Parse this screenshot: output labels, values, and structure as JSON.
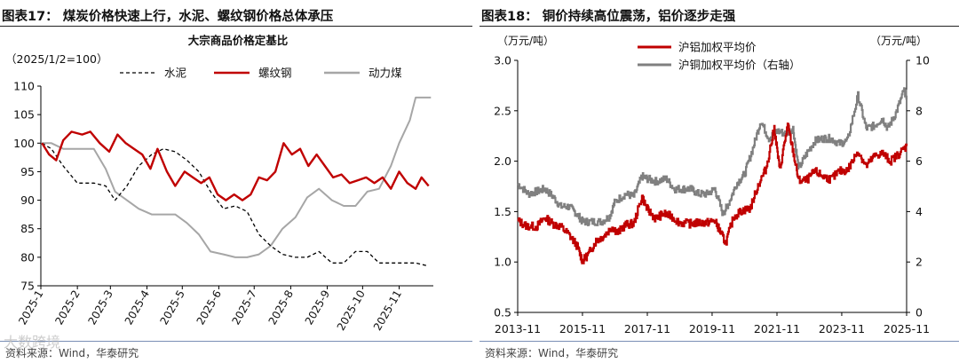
{
  "colors": {
    "red": "#c00000",
    "gray": "#a6a6a6",
    "dark_gray": "#808080",
    "black": "#000000",
    "rule": "#7a8fb5"
  },
  "left_figure": {
    "figure_title": "图表17：  煤炭价格快速上行，水泥、螺纹钢价格总体承压",
    "source": "资料来源：Wind，华泰研究",
    "watermark": "大数跨境",
    "chart_data": {
      "type": "line",
      "title": "大宗商品价格定基比",
      "subtitle": "（2025/1/2=100）",
      "ylim": [
        75,
        110
      ],
      "yticks": [
        75,
        80,
        85,
        90,
        95,
        100,
        105,
        110
      ],
      "x_range": [
        "2025-01-01",
        "2025-11-30"
      ],
      "x_tick_labels": [
        "2025-1",
        "2025-2",
        "2025-3",
        "2025-4",
        "2025-5",
        "2025-6",
        "2025-7",
        "2025-8",
        "2025-9",
        "2025-10",
        "2025-11"
      ],
      "x_tick_dates": [
        "2025-01-01",
        "2025-02-01",
        "2025-03-01",
        "2025-04-01",
        "2025-05-01",
        "2025-06-01",
        "2025-07-01",
        "2025-08-01",
        "2025-09-01",
        "2025-10-01",
        "2025-11-01"
      ],
      "legend_position": "top",
      "series": [
        {
          "name": "水泥",
          "style": "dashed",
          "color": "#000000",
          "points": [
            [
              "2025-01-02",
              100
            ],
            [
              "2025-01-10",
              99
            ],
            [
              "2025-01-20",
              96
            ],
            [
              "2025-02-01",
              93
            ],
            [
              "2025-02-15",
              93
            ],
            [
              "2025-02-25",
              92.5
            ],
            [
              "2025-03-05",
              90
            ],
            [
              "2025-03-15",
              92.5
            ],
            [
              "2025-03-25",
              96
            ],
            [
              "2025-04-05",
              98
            ],
            [
              "2025-04-15",
              99
            ],
            [
              "2025-04-25",
              98.5
            ],
            [
              "2025-05-05",
              97
            ],
            [
              "2025-05-15",
              95
            ],
            [
              "2025-05-25",
              91.5
            ],
            [
              "2025-06-05",
              88.5
            ],
            [
              "2025-06-15",
              89
            ],
            [
              "2025-06-25",
              88
            ],
            [
              "2025-07-05",
              84
            ],
            [
              "2025-07-15",
              82
            ],
            [
              "2025-07-25",
              80.5
            ],
            [
              "2025-08-05",
              80
            ],
            [
              "2025-08-15",
              80
            ],
            [
              "2025-08-25",
              81
            ],
            [
              "2025-09-05",
              79
            ],
            [
              "2025-09-15",
              79
            ],
            [
              "2025-09-25",
              81
            ],
            [
              "2025-10-05",
              81
            ],
            [
              "2025-10-15",
              79
            ],
            [
              "2025-10-25",
              79
            ],
            [
              "2025-11-05",
              79
            ],
            [
              "2025-11-15",
              79
            ],
            [
              "2025-11-25",
              78.5
            ]
          ]
        },
        {
          "name": "螺纹钢",
          "style": "solid",
          "color": "#c00000",
          "points": [
            [
              "2025-01-02",
              100
            ],
            [
              "2025-01-08",
              98
            ],
            [
              "2025-01-14",
              97
            ],
            [
              "2025-01-20",
              100.5
            ],
            [
              "2025-01-27",
              102
            ],
            [
              "2025-02-05",
              101.5
            ],
            [
              "2025-02-12",
              102
            ],
            [
              "2025-02-20",
              100
            ],
            [
              "2025-02-28",
              98.5
            ],
            [
              "2025-03-07",
              101.5
            ],
            [
              "2025-03-14",
              100
            ],
            [
              "2025-03-21",
              99
            ],
            [
              "2025-03-28",
              98
            ],
            [
              "2025-04-04",
              95.5
            ],
            [
              "2025-04-10",
              99
            ],
            [
              "2025-04-18",
              95
            ],
            [
              "2025-04-25",
              92.5
            ],
            [
              "2025-05-03",
              95
            ],
            [
              "2025-05-10",
              94
            ],
            [
              "2025-05-17",
              93
            ],
            [
              "2025-05-24",
              94
            ],
            [
              "2025-05-31",
              91
            ],
            [
              "2025-06-07",
              90
            ],
            [
              "2025-06-14",
              91
            ],
            [
              "2025-06-21",
              90
            ],
            [
              "2025-06-28",
              91
            ],
            [
              "2025-07-05",
              94
            ],
            [
              "2025-07-12",
              93.5
            ],
            [
              "2025-07-19",
              95
            ],
            [
              "2025-07-26",
              100
            ],
            [
              "2025-08-02",
              98
            ],
            [
              "2025-08-09",
              99
            ],
            [
              "2025-08-16",
              96
            ],
            [
              "2025-08-23",
              98
            ],
            [
              "2025-08-30",
              96
            ],
            [
              "2025-09-06",
              94
            ],
            [
              "2025-09-13",
              94.5
            ],
            [
              "2025-09-20",
              93
            ],
            [
              "2025-09-27",
              93.5
            ],
            [
              "2025-10-04",
              94
            ],
            [
              "2025-10-11",
              93
            ],
            [
              "2025-10-18",
              94
            ],
            [
              "2025-10-25",
              92
            ],
            [
              "2025-11-01",
              95
            ],
            [
              "2025-11-08",
              93
            ],
            [
              "2025-11-15",
              92
            ],
            [
              "2025-11-20",
              94
            ],
            [
              "2025-11-26",
              92.5
            ]
          ]
        },
        {
          "name": "动力煤",
          "style": "solid",
          "color": "#a6a6a6",
          "points": [
            [
              "2025-01-02",
              100
            ],
            [
              "2025-01-10",
              100
            ],
            [
              "2025-01-20",
              99
            ],
            [
              "2025-02-01",
              99
            ],
            [
              "2025-02-15",
              99
            ],
            [
              "2025-02-25",
              95.5
            ],
            [
              "2025-03-05",
              91.5
            ],
            [
              "2025-03-15",
              90
            ],
            [
              "2025-03-25",
              88.5
            ],
            [
              "2025-04-05",
              87.5
            ],
            [
              "2025-04-15",
              87.5
            ],
            [
              "2025-04-25",
              87.5
            ],
            [
              "2025-05-05",
              86
            ],
            [
              "2025-05-15",
              84
            ],
            [
              "2025-05-25",
              81
            ],
            [
              "2025-06-05",
              80.5
            ],
            [
              "2025-06-15",
              80
            ],
            [
              "2025-06-25",
              80
            ],
            [
              "2025-07-05",
              80.5
            ],
            [
              "2025-07-15",
              82
            ],
            [
              "2025-07-25",
              85
            ],
            [
              "2025-08-05",
              87
            ],
            [
              "2025-08-15",
              90.5
            ],
            [
              "2025-08-25",
              92
            ],
            [
              "2025-09-05",
              90
            ],
            [
              "2025-09-15",
              89
            ],
            [
              "2025-09-25",
              89
            ],
            [
              "2025-10-05",
              91.5
            ],
            [
              "2025-10-15",
              92
            ],
            [
              "2025-10-25",
              96
            ],
            [
              "2025-11-01",
              100
            ],
            [
              "2025-11-10",
              104
            ],
            [
              "2025-11-15",
              108
            ],
            [
              "2025-11-28",
              108
            ]
          ]
        }
      ]
    }
  },
  "right_figure": {
    "figure_title": "图表18：  铜价持续高位震荡，铝价逐步走强",
    "source": "资料来源：Wind，华泰研究",
    "chart_data": {
      "type": "line",
      "y_unit_left": "（万元/吨）",
      "y_unit_right": "（万元/吨）",
      "ylim_left": [
        0.5,
        3.0
      ],
      "yticks_left": [
        "0.5",
        "1.0",
        "1.5",
        "2.0",
        "2.5",
        "3.0"
      ],
      "ylim_right": [
        0,
        10
      ],
      "yticks_right": [
        "0",
        "2",
        "4",
        "6",
        "8",
        "10"
      ],
      "x_range": [
        "2013-11",
        "2025-11"
      ],
      "x_tick_labels": [
        "2013-11",
        "2015-11",
        "2017-11",
        "2019-11",
        "2021-11",
        "2023-11",
        "2025-11"
      ],
      "x_tick_dates": [
        "2013-11",
        "2015-11",
        "2017-11",
        "2019-11",
        "2021-11",
        "2023-11",
        "2025-11"
      ],
      "legend_position": "top-left",
      "series": [
        {
          "name": "沪铝加权平均价",
          "axis": "left",
          "color": "#c00000",
          "points": [
            [
              "2013-11",
              1.41
            ],
            [
              "2014-02",
              1.36
            ],
            [
              "2014-06",
              1.35
            ],
            [
              "2014-09",
              1.44
            ],
            [
              "2014-12",
              1.38
            ],
            [
              "2015-03",
              1.35
            ],
            [
              "2015-06",
              1.27
            ],
            [
              "2015-09",
              1.16
            ],
            [
              "2015-11",
              1.01
            ],
            [
              "2016-01",
              1.07
            ],
            [
              "2016-04",
              1.21
            ],
            [
              "2016-07",
              1.26
            ],
            [
              "2016-10",
              1.35
            ],
            [
              "2016-12",
              1.29
            ],
            [
              "2017-03",
              1.37
            ],
            [
              "2017-06",
              1.38
            ],
            [
              "2017-09",
              1.65
            ],
            [
              "2017-11",
              1.52
            ],
            [
              "2018-02",
              1.43
            ],
            [
              "2018-05",
              1.48
            ],
            [
              "2018-08",
              1.45
            ],
            [
              "2018-11",
              1.39
            ],
            [
              "2019-03",
              1.38
            ],
            [
              "2019-06",
              1.39
            ],
            [
              "2019-09",
              1.39
            ],
            [
              "2019-12",
              1.41
            ],
            [
              "2020-02",
              1.3
            ],
            [
              "2020-04",
              1.19
            ],
            [
              "2020-07",
              1.45
            ],
            [
              "2020-10",
              1.51
            ],
            [
              "2021-01",
              1.53
            ],
            [
              "2021-04",
              1.76
            ],
            [
              "2021-07",
              1.93
            ],
            [
              "2021-10",
              2.33
            ],
            [
              "2021-12",
              1.91
            ],
            [
              "2022-03",
              2.36
            ],
            [
              "2022-05",
              2.1
            ],
            [
              "2022-07",
              1.81
            ],
            [
              "2022-10",
              1.81
            ],
            [
              "2023-01",
              1.9
            ],
            [
              "2023-04",
              1.85
            ],
            [
              "2023-07",
              1.82
            ],
            [
              "2023-10",
              1.9
            ],
            [
              "2024-01",
              1.91
            ],
            [
              "2024-05",
              2.1
            ],
            [
              "2024-08",
              1.95
            ],
            [
              "2024-11",
              2.05
            ],
            [
              "2025-02",
              2.08
            ],
            [
              "2025-05",
              2.0
            ],
            [
              "2025-08",
              2.07
            ],
            [
              "2025-11",
              2.15
            ]
          ]
        },
        {
          "name": "沪铜加权平均价（右轴）",
          "axis": "right",
          "color": "#808080",
          "points": [
            [
              "2013-11",
              5.1
            ],
            [
              "2014-03",
              4.7
            ],
            [
              "2014-06",
              4.8
            ],
            [
              "2014-09",
              4.9
            ],
            [
              "2014-12",
              4.6
            ],
            [
              "2015-03",
              4.2
            ],
            [
              "2015-06",
              4.2
            ],
            [
              "2015-09",
              3.9
            ],
            [
              "2015-11",
              3.6
            ],
            [
              "2016-02",
              3.6
            ],
            [
              "2016-06",
              3.6
            ],
            [
              "2016-09",
              3.8
            ],
            [
              "2016-11",
              4.4
            ],
            [
              "2017-03",
              4.7
            ],
            [
              "2017-06",
              4.6
            ],
            [
              "2017-09",
              5.4
            ],
            [
              "2017-11",
              5.3
            ],
            [
              "2018-02",
              5.2
            ],
            [
              "2018-06",
              5.3
            ],
            [
              "2018-09",
              4.9
            ],
            [
              "2018-12",
              4.9
            ],
            [
              "2019-03",
              4.9
            ],
            [
              "2019-06",
              4.7
            ],
            [
              "2019-09",
              4.7
            ],
            [
              "2019-12",
              4.9
            ],
            [
              "2020-03",
              3.9
            ],
            [
              "2020-05",
              4.3
            ],
            [
              "2020-08",
              5.1
            ],
            [
              "2020-11",
              5.5
            ],
            [
              "2021-02",
              6.5
            ],
            [
              "2021-05",
              7.6
            ],
            [
              "2021-08",
              6.9
            ],
            [
              "2021-11",
              7.2
            ],
            [
              "2022-02",
              7.1
            ],
            [
              "2022-05",
              7.3
            ],
            [
              "2022-07",
              5.7
            ],
            [
              "2022-10",
              6.3
            ],
            [
              "2023-01",
              6.8
            ],
            [
              "2023-04",
              6.9
            ],
            [
              "2023-07",
              6.9
            ],
            [
              "2023-10",
              6.7
            ],
            [
              "2024-01",
              6.8
            ],
            [
              "2024-05",
              8.6
            ],
            [
              "2024-08",
              7.3
            ],
            [
              "2024-11",
              7.4
            ],
            [
              "2025-02",
              7.7
            ],
            [
              "2025-04",
              7.3
            ],
            [
              "2025-07",
              7.9
            ],
            [
              "2025-10",
              8.8
            ],
            [
              "2025-11",
              8.6
            ]
          ]
        }
      ]
    }
  }
}
